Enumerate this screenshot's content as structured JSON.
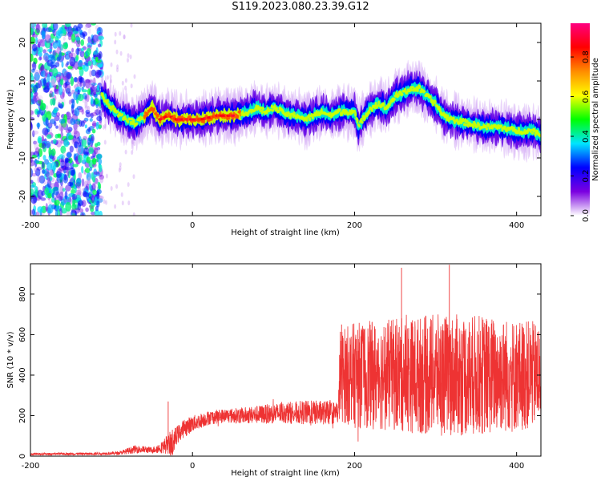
{
  "title": "S119.2023.080.23.39.G12",
  "chart_data": [
    {
      "type": "heatmap",
      "xlabel": "Height of straight line (km)",
      "ylabel": "Frequency (Hz)",
      "xlim": [
        -200,
        430
      ],
      "ylim": [
        -25,
        25
      ],
      "x_ticks": [
        -200,
        0,
        200,
        400
      ],
      "y_ticks": [
        -20,
        -10,
        0,
        10,
        20
      ],
      "colorbar": {
        "label": "Normalized spectral amplitude",
        "range": [
          0,
          0.97
        ],
        "ticks": [
          0.0,
          0.2,
          0.4,
          0.6,
          0.8
        ],
        "stops": [
          "#ffffff",
          "#7b00e0",
          "#0000ff",
          "#00e5ff",
          "#00ff00",
          "#ffff00",
          "#ff8c00",
          "#ff0000",
          "#ff0080"
        ]
      },
      "noise_region_km": [
        -200,
        -112
      ],
      "ridge": {
        "x": [
          -112,
          -100,
          -90,
          -80,
          -70,
          -60,
          -50,
          -40,
          -30,
          -20,
          -10,
          0,
          10,
          20,
          30,
          40,
          50,
          60,
          70,
          80,
          90,
          100,
          110,
          120,
          130,
          140,
          150,
          160,
          170,
          180,
          190,
          200,
          205,
          210,
          220,
          230,
          240,
          250,
          260,
          270,
          280,
          290,
          300,
          310,
          320,
          340,
          360,
          380,
          400,
          420,
          430
        ],
        "y": [
          6,
          3,
          1,
          0,
          -1,
          1,
          3,
          0,
          1,
          0,
          0,
          0,
          0,
          0.5,
          1,
          1,
          1,
          1.5,
          2,
          3,
          2,
          3,
          2,
          1,
          1,
          0,
          1,
          2,
          1,
          2,
          2,
          2,
          -2,
          0,
          3,
          4,
          3,
          6,
          7,
          8,
          8,
          6,
          4,
          1,
          0,
          -1,
          -2,
          -2,
          -3,
          -3,
          -4
        ]
      }
    },
    {
      "type": "line",
      "xlabel": "Height of straight line (km)",
      "ylabel": "SNR (10 * v/v)",
      "xlim": [
        -200,
        430
      ],
      "ylim": [
        0,
        950
      ],
      "x_ticks": [
        -200,
        0,
        200,
        400
      ],
      "y_ticks": [
        0,
        200,
        400,
        600,
        800
      ],
      "color": "#ee3333",
      "series": [
        {
          "envelope": {
            "x": [
              -200,
              -120,
              -90,
              -80,
              -70,
              -50,
              -40,
              -30,
              -25,
              -20,
              -10,
              0,
              20,
              40,
              60,
              80,
              100,
              120,
              140,
              160,
              180,
              182,
              200,
              250,
              300,
              350,
              400,
              430
            ],
            "base": [
              10,
              12,
              15,
              25,
              35,
              30,
              40,
              60,
              55,
              100,
              140,
              160,
              190,
              200,
              200,
              205,
              210,
              215,
              215,
              215,
              215,
              400,
              400,
              400,
              400,
              400,
              400,
              400
            ],
            "noise": [
              5,
              6,
              8,
              15,
              20,
              15,
              25,
              50,
              80,
              45,
              45,
              40,
              35,
              35,
              40,
              45,
              50,
              55,
              60,
              60,
              55,
              230,
              260,
              280,
              300,
              300,
              280,
              260
            ]
          },
          "peaks": [
            {
              "x": -30,
              "y": 270
            },
            {
              "x": 258,
              "y": 930
            },
            {
              "x": 317,
              "y": 945
            },
            {
              "x": 184,
              "y": 650
            }
          ]
        }
      ]
    }
  ]
}
